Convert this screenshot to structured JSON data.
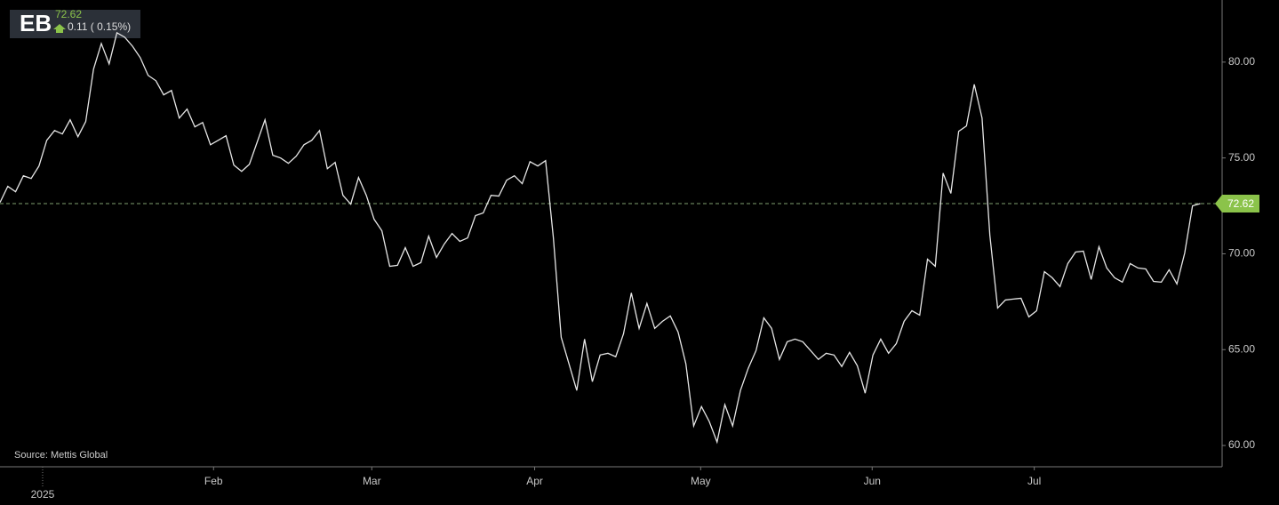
{
  "header": {
    "symbol": "EB",
    "price": "72.62",
    "change": "0.11 ( 0.15%)"
  },
  "source": "Source: Mettis Global",
  "chart_data": {
    "type": "line",
    "series": [
      {
        "color": "#e6e6e6",
        "values": [
          72.68,
          73.52,
          73.24,
          74.07,
          73.93,
          74.58,
          75.92,
          76.43,
          76.25,
          76.99,
          76.11,
          76.9,
          79.63,
          80.97,
          79.91,
          81.53,
          81.3,
          80.83,
          80.23,
          79.31,
          79.03,
          78.29,
          78.52,
          77.08,
          77.55,
          76.62,
          76.85,
          75.69,
          75.92,
          76.16,
          74.63,
          74.3,
          74.67,
          75.83,
          76.99,
          75.14,
          75.0,
          74.72,
          75.09,
          75.69,
          75.92,
          76.43,
          74.44,
          74.77,
          73.05,
          72.59,
          73.98,
          73.05,
          71.8,
          71.2,
          69.35,
          69.4,
          70.32,
          69.35,
          69.54,
          70.92,
          69.81,
          70.51,
          71.06,
          70.65,
          70.83,
          71.99,
          72.13,
          73.05,
          73.01,
          73.84,
          74.07,
          73.66,
          74.81,
          74.58,
          74.86,
          70.83,
          65.65,
          64.26,
          62.87,
          65.55,
          63.33,
          64.72,
          64.81,
          64.63,
          65.83,
          67.96,
          66.11,
          67.41,
          66.11,
          66.48,
          66.76,
          65.92,
          64.26,
          61.02,
          62.03,
          61.25,
          60.18,
          62.13,
          61.02,
          62.87,
          64.03,
          64.95,
          66.66,
          66.11,
          64.49,
          65.41,
          65.55,
          65.41,
          64.95,
          64.49,
          64.81,
          64.72,
          64.12,
          64.86,
          64.16,
          62.73,
          64.72,
          65.55,
          64.81,
          65.32,
          66.48,
          67.03,
          66.8,
          69.72,
          69.35,
          74.21,
          73.15,
          76.39,
          76.67,
          78.84,
          77.08,
          70.97,
          67.17,
          67.59,
          67.64,
          67.68,
          66.71,
          67.03,
          69.07,
          68.75,
          68.29,
          69.49,
          70.09,
          70.14,
          68.66,
          70.37,
          69.26,
          68.75,
          68.52,
          69.49,
          69.26,
          69.21,
          68.56,
          68.52,
          69.17,
          68.43,
          70.04,
          72.5,
          72.62
        ]
      }
    ],
    "xlim": [
      0,
      156.8
    ],
    "xticks": [
      {
        "value": 5.47,
        "label": "2025"
      },
      {
        "value": 27.4,
        "label": "Feb"
      },
      {
        "value": 47.7,
        "label": "Mar"
      },
      {
        "value": 68.6,
        "label": "Apr"
      },
      {
        "value": 89.9,
        "label": "May"
      },
      {
        "value": 111.9,
        "label": "Jun"
      },
      {
        "value": 132.7,
        "label": "Jul"
      }
    ],
    "ylim": [
      58.89,
      83.24
    ],
    "yticks": [
      {
        "value": 60,
        "label": "60.00"
      },
      {
        "value": 65,
        "label": "65.00"
      },
      {
        "value": 70,
        "label": "70.00"
      },
      {
        "value": 75,
        "label": "75.00"
      },
      {
        "value": 80,
        "label": "80.00"
      }
    ],
    "last_color": "#8bc34a"
  }
}
